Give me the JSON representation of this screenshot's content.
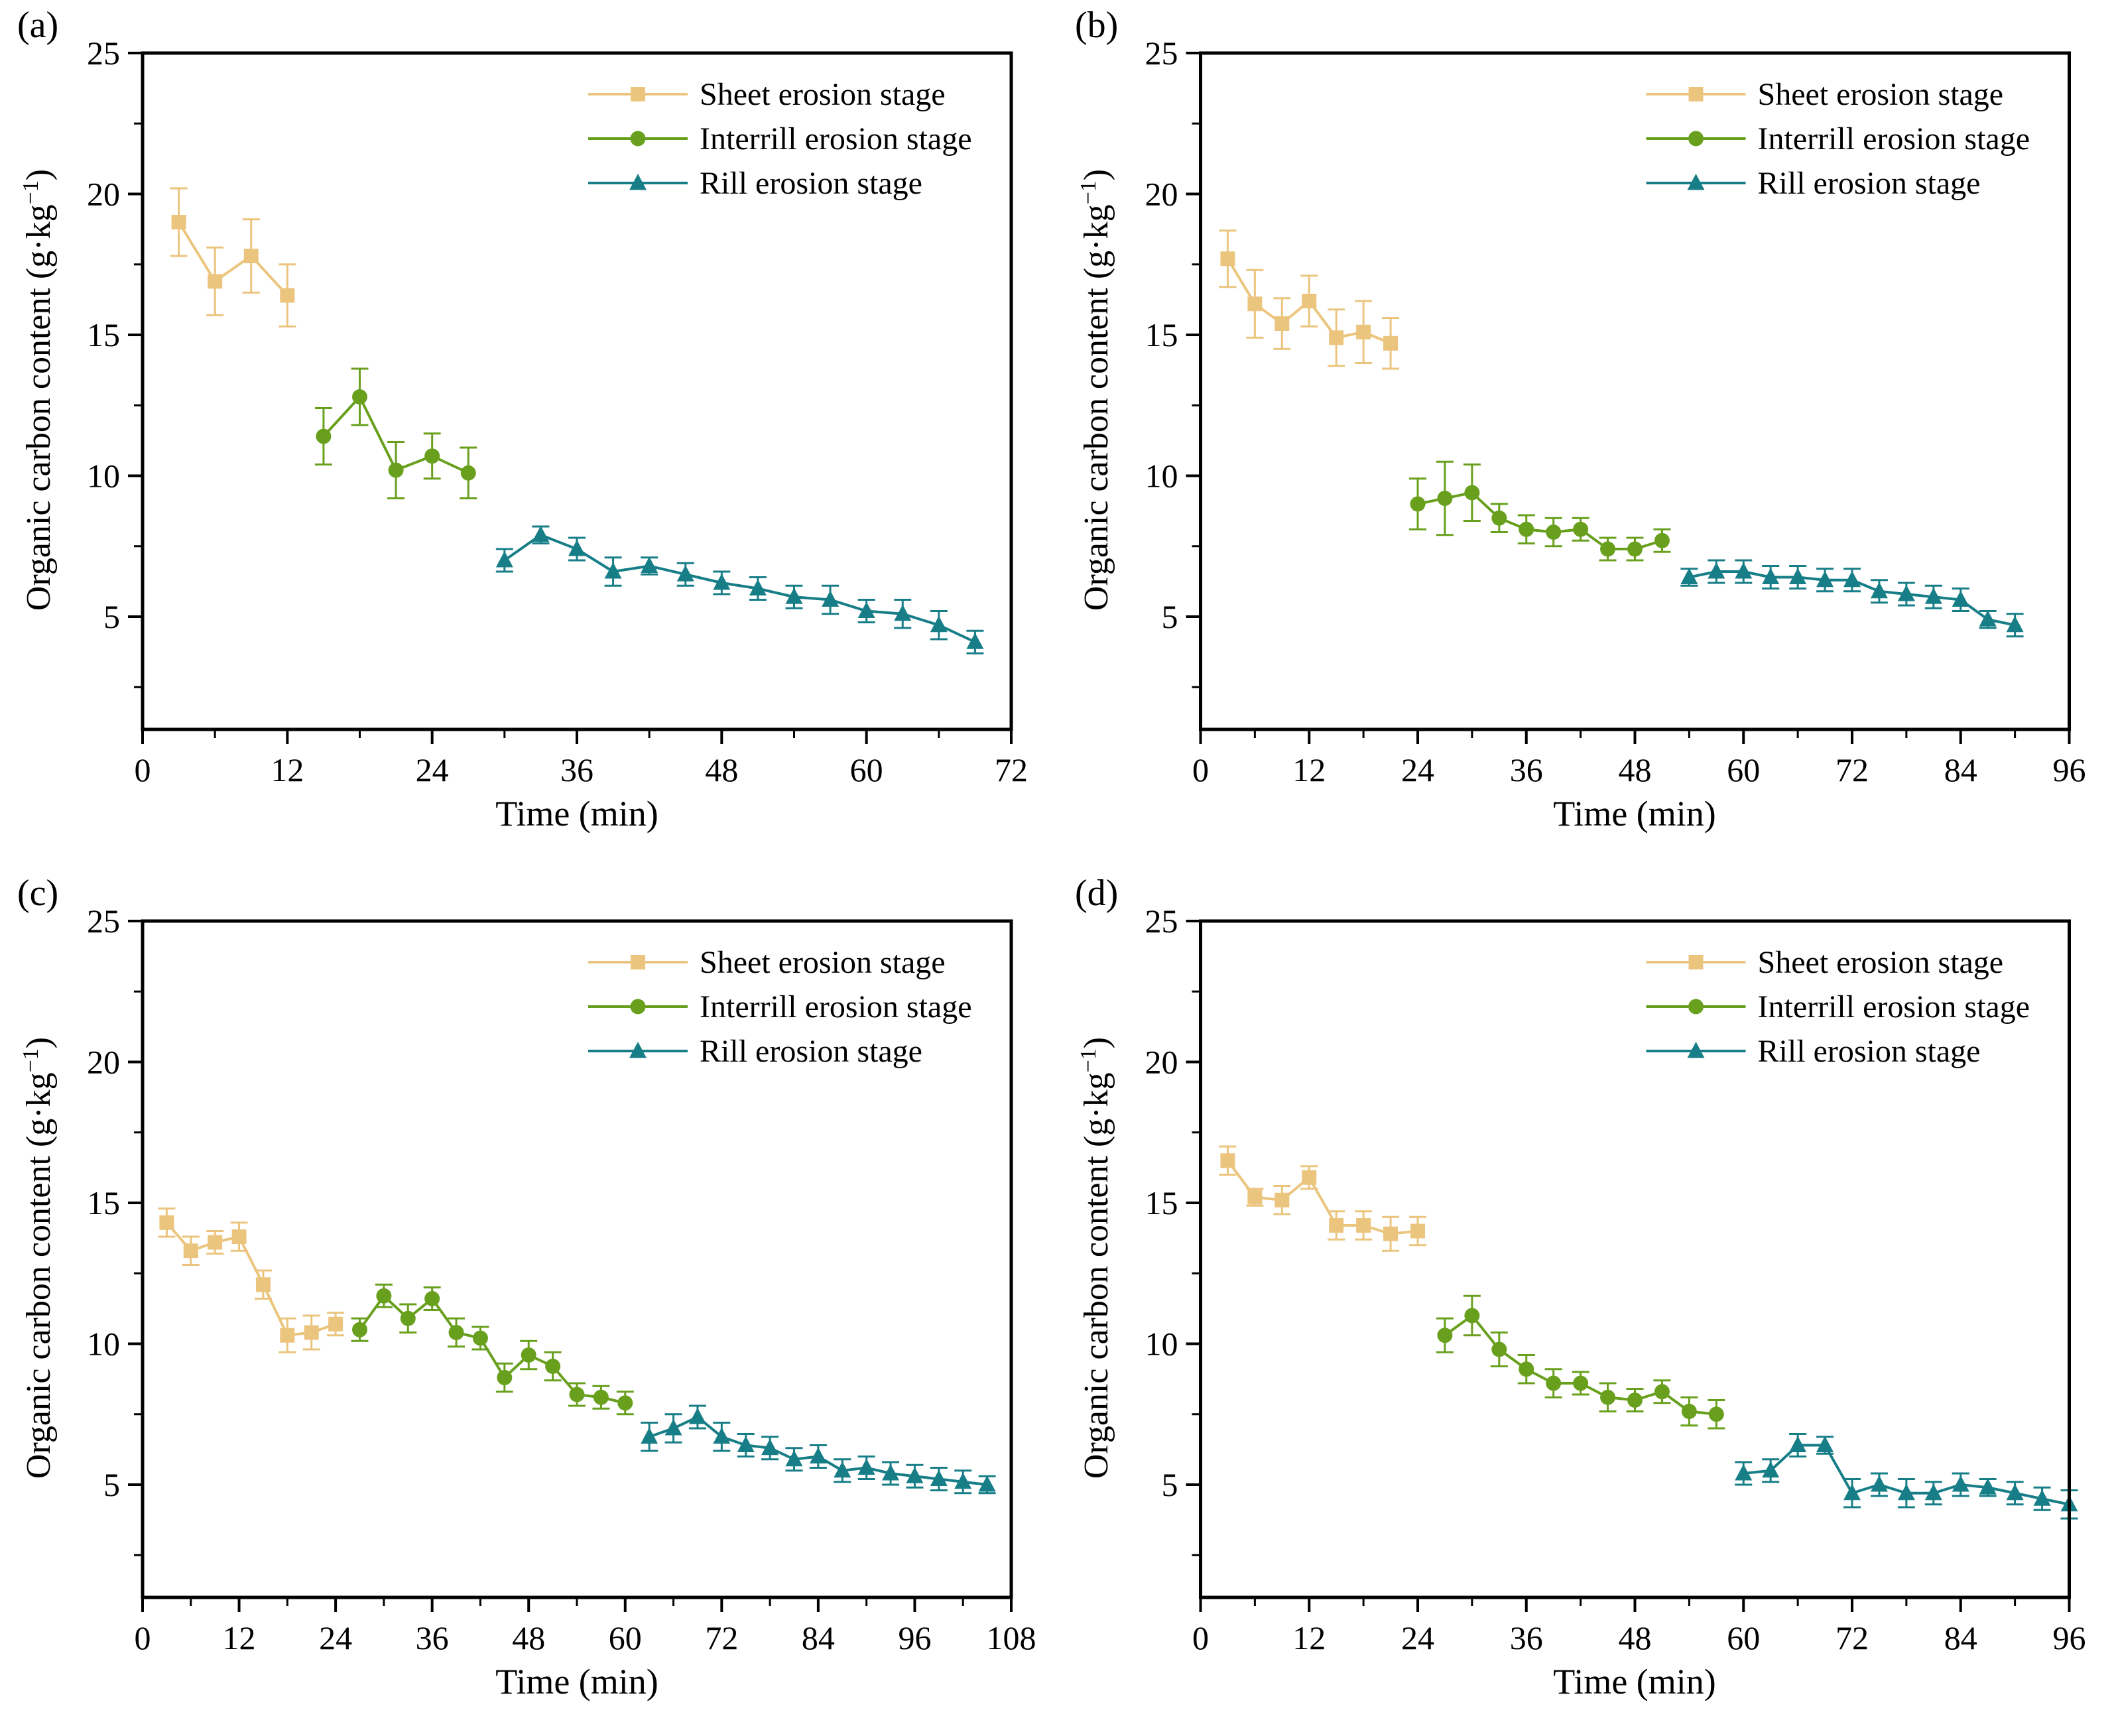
{
  "figure": {
    "background": "#ffffff",
    "axis_color": "#000000",
    "colors": {
      "sheet": "#EBC57E",
      "interrill": "#68A01E",
      "rill": "#177E87"
    },
    "marker_shapes": {
      "sheet": "square",
      "interrill": "circle",
      "rill": "triangle"
    }
  },
  "chart_data": [
    {
      "type": "line",
      "panel_label": "(a)",
      "xlabel": "Time (min)",
      "ylabel_pre": "Organic carbon content (g·kg",
      "ylabel_sup": "−1",
      "ylabel_post": ")",
      "xlim": [
        0,
        72
      ],
      "ylim": [
        1,
        25
      ],
      "xticks": [
        0,
        12,
        24,
        36,
        48,
        60,
        72
      ],
      "yticks": [
        5,
        10,
        15,
        20,
        25
      ],
      "yminors": [
        2.5,
        7.5,
        12.5,
        17.5,
        22.5
      ],
      "legend_position": "top-right",
      "grid": false,
      "series": [
        {
          "name": "Sheet erosion stage",
          "color": "#EBC57E",
          "marker": "square",
          "x": [
            3,
            6,
            9,
            12
          ],
          "y": [
            19.0,
            16.9,
            17.8,
            16.4
          ],
          "err": [
            1.2,
            1.2,
            1.3,
            1.1
          ]
        },
        {
          "name": "Interrill erosion stage",
          "color": "#68A01E",
          "marker": "circle",
          "x": [
            15,
            18,
            21,
            24,
            27
          ],
          "y": [
            11.4,
            12.8,
            10.2,
            10.7,
            10.1
          ],
          "err": [
            1.0,
            1.0,
            1.0,
            0.8,
            0.9
          ]
        },
        {
          "name": "Rill erosion stage",
          "color": "#177E87",
          "marker": "triangle",
          "x": [
            30,
            33,
            36,
            39,
            42,
            45,
            48,
            51,
            54,
            57,
            60,
            63,
            66,
            69
          ],
          "y": [
            7.0,
            7.9,
            7.4,
            6.6,
            6.8,
            6.5,
            6.2,
            6.0,
            5.7,
            5.6,
            5.2,
            5.1,
            4.7,
            4.1
          ],
          "err": [
            0.4,
            0.3,
            0.4,
            0.5,
            0.3,
            0.4,
            0.4,
            0.4,
            0.4,
            0.5,
            0.4,
            0.5,
            0.5,
            0.4
          ]
        }
      ]
    },
    {
      "type": "line",
      "panel_label": "(b)",
      "xlabel": "Time (min)",
      "ylabel_pre": "Organic carbon content (g·kg",
      "ylabel_sup": "−1",
      "ylabel_post": ")",
      "xlim": [
        0,
        96
      ],
      "ylim": [
        1,
        25
      ],
      "xticks": [
        0,
        12,
        24,
        36,
        48,
        60,
        72,
        84,
        96
      ],
      "yticks": [
        5,
        10,
        15,
        20,
        25
      ],
      "yminors": [
        2.5,
        7.5,
        12.5,
        17.5,
        22.5
      ],
      "legend_position": "top-right",
      "grid": false,
      "series": [
        {
          "name": "Sheet erosion stage",
          "color": "#EBC57E",
          "marker": "square",
          "x": [
            3,
            6,
            9,
            12,
            15,
            18,
            21
          ],
          "y": [
            17.7,
            16.1,
            15.4,
            16.2,
            14.9,
            15.1,
            14.7
          ],
          "err": [
            1.0,
            1.2,
            0.9,
            0.9,
            1.0,
            1.1,
            0.9
          ]
        },
        {
          "name": "Interrill erosion stage",
          "color": "#68A01E",
          "marker": "circle",
          "x": [
            24,
            27,
            30,
            33,
            36,
            39,
            42,
            45,
            48,
            51
          ],
          "y": [
            9.0,
            9.2,
            9.4,
            8.5,
            8.1,
            8.0,
            8.1,
            7.4,
            7.4,
            7.7
          ],
          "err": [
            0.9,
            1.3,
            1.0,
            0.5,
            0.5,
            0.5,
            0.4,
            0.4,
            0.4,
            0.4
          ]
        },
        {
          "name": "Rill erosion stage",
          "color": "#177E87",
          "marker": "triangle",
          "x": [
            54,
            57,
            60,
            63,
            66,
            69,
            72,
            75,
            78,
            81,
            84,
            87,
            90
          ],
          "y": [
            6.4,
            6.6,
            6.6,
            6.4,
            6.4,
            6.3,
            6.3,
            5.9,
            5.8,
            5.7,
            5.6,
            4.9,
            4.7
          ],
          "err": [
            0.3,
            0.4,
            0.4,
            0.4,
            0.4,
            0.4,
            0.4,
            0.4,
            0.4,
            0.4,
            0.4,
            0.3,
            0.4
          ]
        }
      ]
    },
    {
      "type": "line",
      "panel_label": "(c)",
      "xlabel": "Time (min)",
      "ylabel_pre": "Organic carbon content (g·kg",
      "ylabel_sup": "−1",
      "ylabel_post": ")",
      "xlim": [
        0,
        108
      ],
      "ylim": [
        1,
        25
      ],
      "xticks": [
        0,
        12,
        24,
        36,
        48,
        60,
        72,
        84,
        96,
        108
      ],
      "yticks": [
        5,
        10,
        15,
        20,
        25
      ],
      "yminors": [
        2.5,
        7.5,
        12.5,
        17.5,
        22.5
      ],
      "legend_position": "top-right",
      "grid": false,
      "series": [
        {
          "name": "Sheet erosion stage",
          "color": "#EBC57E",
          "marker": "square",
          "x": [
            3,
            6,
            9,
            12,
            15,
            18,
            21,
            24
          ],
          "y": [
            14.3,
            13.3,
            13.6,
            13.8,
            12.1,
            10.3,
            10.4,
            10.7
          ],
          "err": [
            0.5,
            0.5,
            0.4,
            0.5,
            0.5,
            0.6,
            0.6,
            0.4
          ]
        },
        {
          "name": "Interrill erosion stage",
          "color": "#68A01E",
          "marker": "circle",
          "x": [
            27,
            30,
            33,
            36,
            39,
            42,
            45,
            48,
            51,
            54,
            57,
            60
          ],
          "y": [
            10.5,
            11.7,
            10.9,
            11.6,
            10.4,
            10.2,
            8.8,
            9.6,
            9.2,
            8.2,
            8.1,
            7.9
          ],
          "err": [
            0.4,
            0.4,
            0.5,
            0.4,
            0.5,
            0.4,
            0.5,
            0.5,
            0.5,
            0.4,
            0.4,
            0.4
          ]
        },
        {
          "name": "Rill erosion stage",
          "color": "#177E87",
          "marker": "triangle",
          "x": [
            63,
            66,
            69,
            72,
            75,
            78,
            81,
            84,
            87,
            90,
            93,
            96,
            99,
            102,
            105
          ],
          "y": [
            6.7,
            7.0,
            7.4,
            6.7,
            6.4,
            6.3,
            5.9,
            6.0,
            5.5,
            5.6,
            5.4,
            5.3,
            5.2,
            5.1,
            5.0
          ],
          "err": [
            0.5,
            0.5,
            0.4,
            0.5,
            0.4,
            0.4,
            0.4,
            0.4,
            0.4,
            0.4,
            0.4,
            0.4,
            0.4,
            0.4,
            0.3
          ]
        }
      ]
    },
    {
      "type": "line",
      "panel_label": "(d)",
      "xlabel": "Time (min)",
      "ylabel_pre": "Organic carbon content (g·kg",
      "ylabel_sup": "−1",
      "ylabel_post": ")",
      "xlim": [
        0,
        96
      ],
      "ylim": [
        1,
        25
      ],
      "xticks": [
        0,
        12,
        24,
        36,
        48,
        60,
        72,
        84,
        96
      ],
      "yticks": [
        5,
        10,
        15,
        20,
        25
      ],
      "yminors": [
        2.5,
        7.5,
        12.5,
        17.5,
        22.5
      ],
      "legend_position": "top-right",
      "grid": false,
      "series": [
        {
          "name": "Sheet erosion stage",
          "color": "#EBC57E",
          "marker": "square",
          "x": [
            3,
            6,
            9,
            12,
            15,
            18,
            21,
            24
          ],
          "y": [
            16.5,
            15.2,
            15.1,
            15.9,
            14.2,
            14.2,
            13.9,
            14.0
          ],
          "err": [
            0.5,
            0.3,
            0.5,
            0.4,
            0.5,
            0.5,
            0.6,
            0.5
          ]
        },
        {
          "name": "Interrill erosion stage",
          "color": "#68A01E",
          "marker": "circle",
          "x": [
            27,
            30,
            33,
            36,
            39,
            42,
            45,
            48,
            51,
            54,
            57
          ],
          "y": [
            10.3,
            11.0,
            9.8,
            9.1,
            8.6,
            8.6,
            8.1,
            8.0,
            8.3,
            7.6,
            7.5
          ],
          "err": [
            0.6,
            0.7,
            0.6,
            0.5,
            0.5,
            0.4,
            0.5,
            0.4,
            0.4,
            0.5,
            0.5
          ]
        },
        {
          "name": "Rill erosion stage",
          "color": "#177E87",
          "marker": "triangle",
          "x": [
            60,
            63,
            66,
            69,
            72,
            75,
            78,
            81,
            84,
            87,
            90,
            93,
            96
          ],
          "y": [
            5.4,
            5.5,
            6.4,
            6.4,
            4.7,
            5.0,
            4.7,
            4.7,
            5.0,
            4.9,
            4.7,
            4.5,
            4.3
          ],
          "err": [
            0.4,
            0.4,
            0.4,
            0.3,
            0.5,
            0.4,
            0.5,
            0.4,
            0.4,
            0.3,
            0.4,
            0.4,
            0.5
          ]
        }
      ]
    }
  ]
}
